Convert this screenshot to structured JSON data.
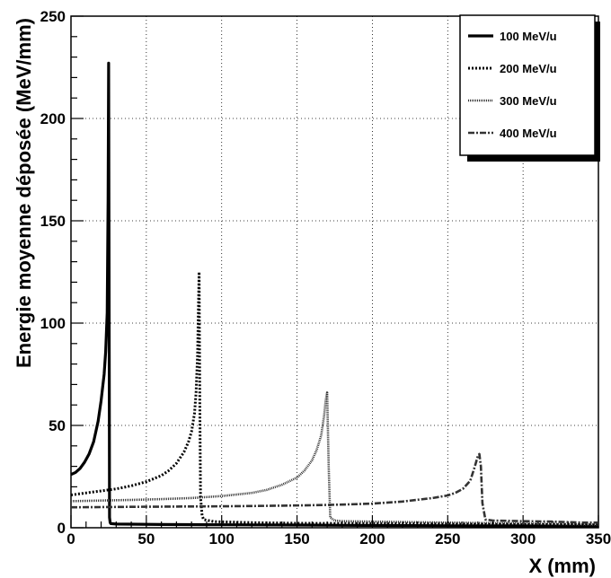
{
  "chart_data": {
    "type": "line",
    "title": "",
    "xlabel": "X (mm)",
    "ylabel": "Energie moyenne déposée (MeV/mm)",
    "xlim": [
      0,
      350
    ],
    "ylim": [
      0,
      250
    ],
    "x_ticks": [
      "0",
      "50",
      "100",
      "150",
      "200",
      "250",
      "300",
      "350"
    ],
    "y_ticks": [
      "0",
      "50",
      "100",
      "150",
      "200",
      "250"
    ],
    "grid": true,
    "legend_position": "top-right",
    "series": [
      {
        "name": "100 MeV/u",
        "style": "solid",
        "color": "#000000",
        "x": [
          0,
          3,
          6,
          9,
          12,
          15,
          18,
          20,
          22,
          23,
          24,
          24.6,
          25.0,
          25.3,
          25.6,
          26.0,
          26.5,
          30,
          60,
          90,
          120,
          150,
          180,
          210,
          240,
          270,
          300,
          330,
          350
        ],
        "y": [
          26,
          27,
          29,
          32,
          36,
          42,
          52,
          62,
          75,
          86,
          105,
          160,
          227,
          120,
          5,
          2.5,
          2,
          1.8,
          1.6,
          1.5,
          1.4,
          1.3,
          1.2,
          1.1,
          1.0,
          0.9,
          0.9,
          0.8,
          0.8
        ]
      },
      {
        "name": "200 MeV/u",
        "style": "dotted",
        "color": "#000000",
        "x": [
          0,
          10,
          20,
          30,
          40,
          50,
          60,
          65,
          70,
          75,
          78,
          80,
          82,
          83,
          84,
          84.5,
          85.0,
          85.5,
          86.0,
          87,
          88,
          95,
          120,
          150,
          200,
          250,
          300,
          350
        ],
        "y": [
          16,
          17,
          18,
          19,
          20.5,
          22.5,
          25.5,
          28,
          31.5,
          37,
          42,
          47,
          56,
          66,
          85,
          105,
          125,
          60,
          15,
          6,
          4,
          3,
          2.5,
          2.2,
          2,
          1.8,
          1.6,
          1.4
        ]
      },
      {
        "name": "300 MeV/u",
        "style": "dense-dotted",
        "color": "#333333",
        "x": [
          0,
          20,
          40,
          60,
          80,
          100,
          120,
          130,
          140,
          150,
          155,
          160,
          163,
          166,
          168,
          169,
          170,
          171,
          172,
          175,
          180,
          200,
          250,
          300,
          350
        ],
        "y": [
          13,
          13.3,
          13.6,
          14,
          14.5,
          15.5,
          17,
          18.5,
          21,
          24.5,
          28,
          33,
          38,
          45,
          55,
          62,
          66,
          30,
          5,
          3.5,
          3.2,
          3,
          2.5,
          2,
          1.5
        ]
      },
      {
        "name": "400 MeV/u",
        "style": "dash-dot",
        "color": "#333333",
        "x": [
          0,
          20,
          40,
          60,
          80,
          100,
          120,
          140,
          160,
          180,
          200,
          220,
          240,
          250,
          255,
          260,
          265,
          268,
          270,
          271,
          272,
          273,
          275,
          280,
          300,
          320,
          340,
          350
        ],
        "y": [
          10,
          10.1,
          10.2,
          10.3,
          10.4,
          10.5,
          10.6,
          10.8,
          11,
          11.3,
          11.8,
          12.8,
          14.5,
          15.8,
          17,
          19,
          23,
          30,
          35,
          36,
          30,
          12,
          4,
          3.5,
          3.2,
          3,
          2.5,
          2.5
        ]
      }
    ]
  }
}
